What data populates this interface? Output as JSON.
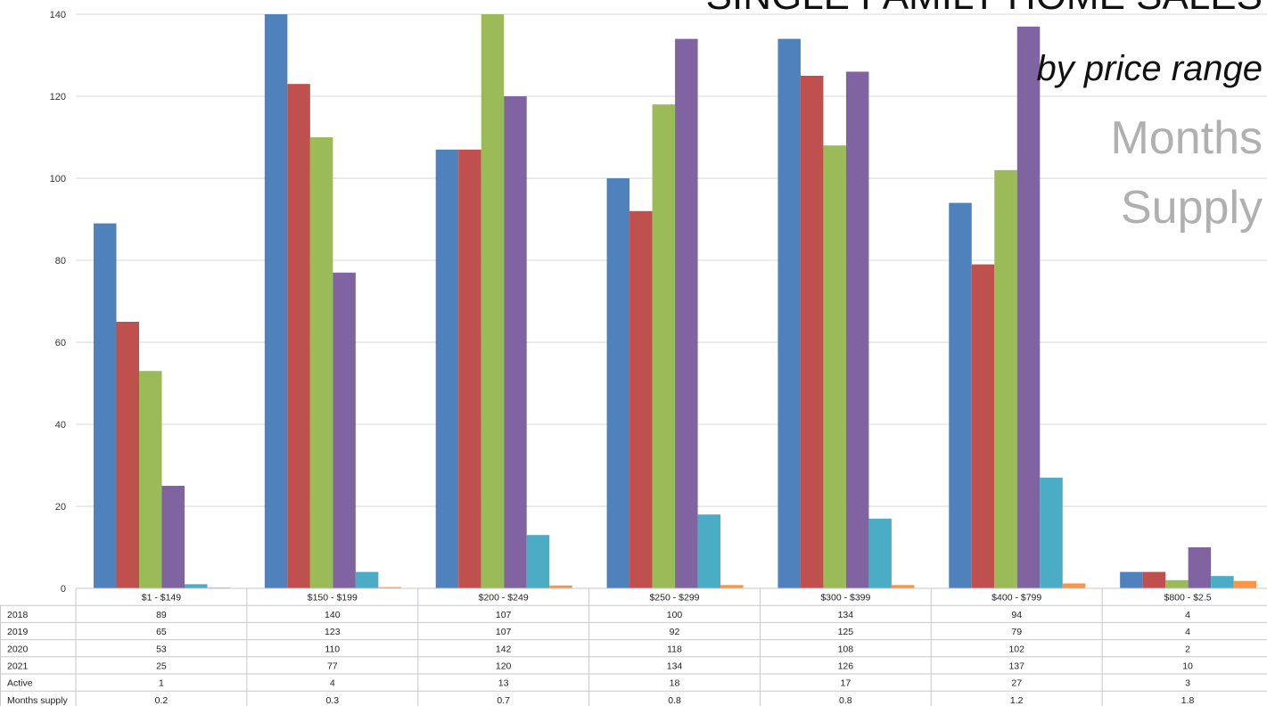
{
  "title": {
    "line1": "SINGLE FAMILY HOME SALES",
    "line2": "by price range",
    "line3": "Months",
    "line4": "Supply"
  },
  "chart_data": {
    "type": "bar",
    "categories": [
      "$1 - $149",
      "$150 - $199",
      "$200 - $249",
      "$250 - $299",
      "$300 - $399",
      "$400 - $799",
      "$800 - $2.5"
    ],
    "series": [
      {
        "name": "2018",
        "color": "#4f81bd",
        "values": [
          89,
          140,
          107,
          100,
          134,
          94,
          4
        ]
      },
      {
        "name": "2019",
        "color": "#c0504d",
        "values": [
          65,
          123,
          107,
          92,
          125,
          79,
          4
        ]
      },
      {
        "name": "2020",
        "color": "#9bbb59",
        "values": [
          53,
          110,
          142,
          118,
          108,
          102,
          2
        ]
      },
      {
        "name": "2021",
        "color": "#8064a2",
        "values": [
          25,
          77,
          120,
          134,
          126,
          137,
          10
        ]
      },
      {
        "name": "Active",
        "color": "#4bacc6",
        "values": [
          1,
          4,
          13,
          18,
          17,
          27,
          3
        ]
      },
      {
        "name": "Months supply",
        "color": "#f79646",
        "values": [
          0.2,
          0.3,
          0.7,
          0.8,
          0.8,
          1.2,
          1.8
        ]
      }
    ],
    "yticks": [
      0,
      20,
      40,
      60,
      80,
      100,
      120,
      140
    ],
    "ylim": [
      0,
      140
    ],
    "grid": true,
    "legend": "data table below chart"
  }
}
